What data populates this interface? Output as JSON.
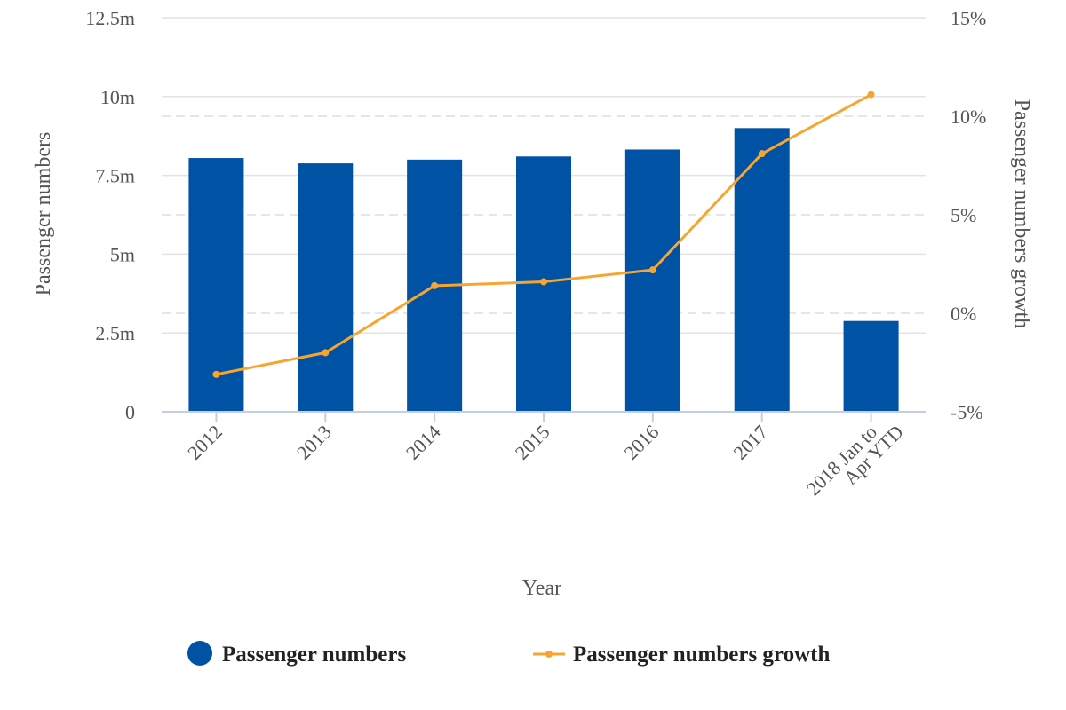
{
  "chart_data": {
    "type": "bar",
    "title": "",
    "xlabel": "Year",
    "ylabel": "Passenger numbers",
    "y2label": "Passenger numbers growth",
    "categories": [
      "2012",
      "2013",
      "2014",
      "2015",
      "2016",
      "2017",
      "2018 Jan to Apr YTD"
    ],
    "ylim": [
      0,
      12.5
    ],
    "y_ticks": [
      "0",
      "2.5m",
      "5m",
      "7.5m",
      "10m",
      "12.5m"
    ],
    "y_tick_values": [
      0,
      2.5,
      5,
      7.5,
      10,
      12.5
    ],
    "y2lim": [
      -5,
      15
    ],
    "y2_ticks": [
      "-5%",
      "0%",
      "5%",
      "10%",
      "15%"
    ],
    "y2_tick_values": [
      -5,
      0,
      5,
      10,
      15
    ],
    "grid": true,
    "legend_position": "bottom",
    "series": [
      {
        "name": "Passenger numbers",
        "kind": "bar",
        "axis": "left",
        "color": "#0052a5",
        "values": [
          8.05,
          7.88,
          8.0,
          8.1,
          8.32,
          9.0,
          2.88
        ]
      },
      {
        "name": "Passenger numbers growth",
        "kind": "line",
        "axis": "right",
        "color": "#f7a531",
        "values": [
          -3.1,
          -2.0,
          1.4,
          1.6,
          2.2,
          8.1,
          11.1
        ]
      }
    ]
  }
}
